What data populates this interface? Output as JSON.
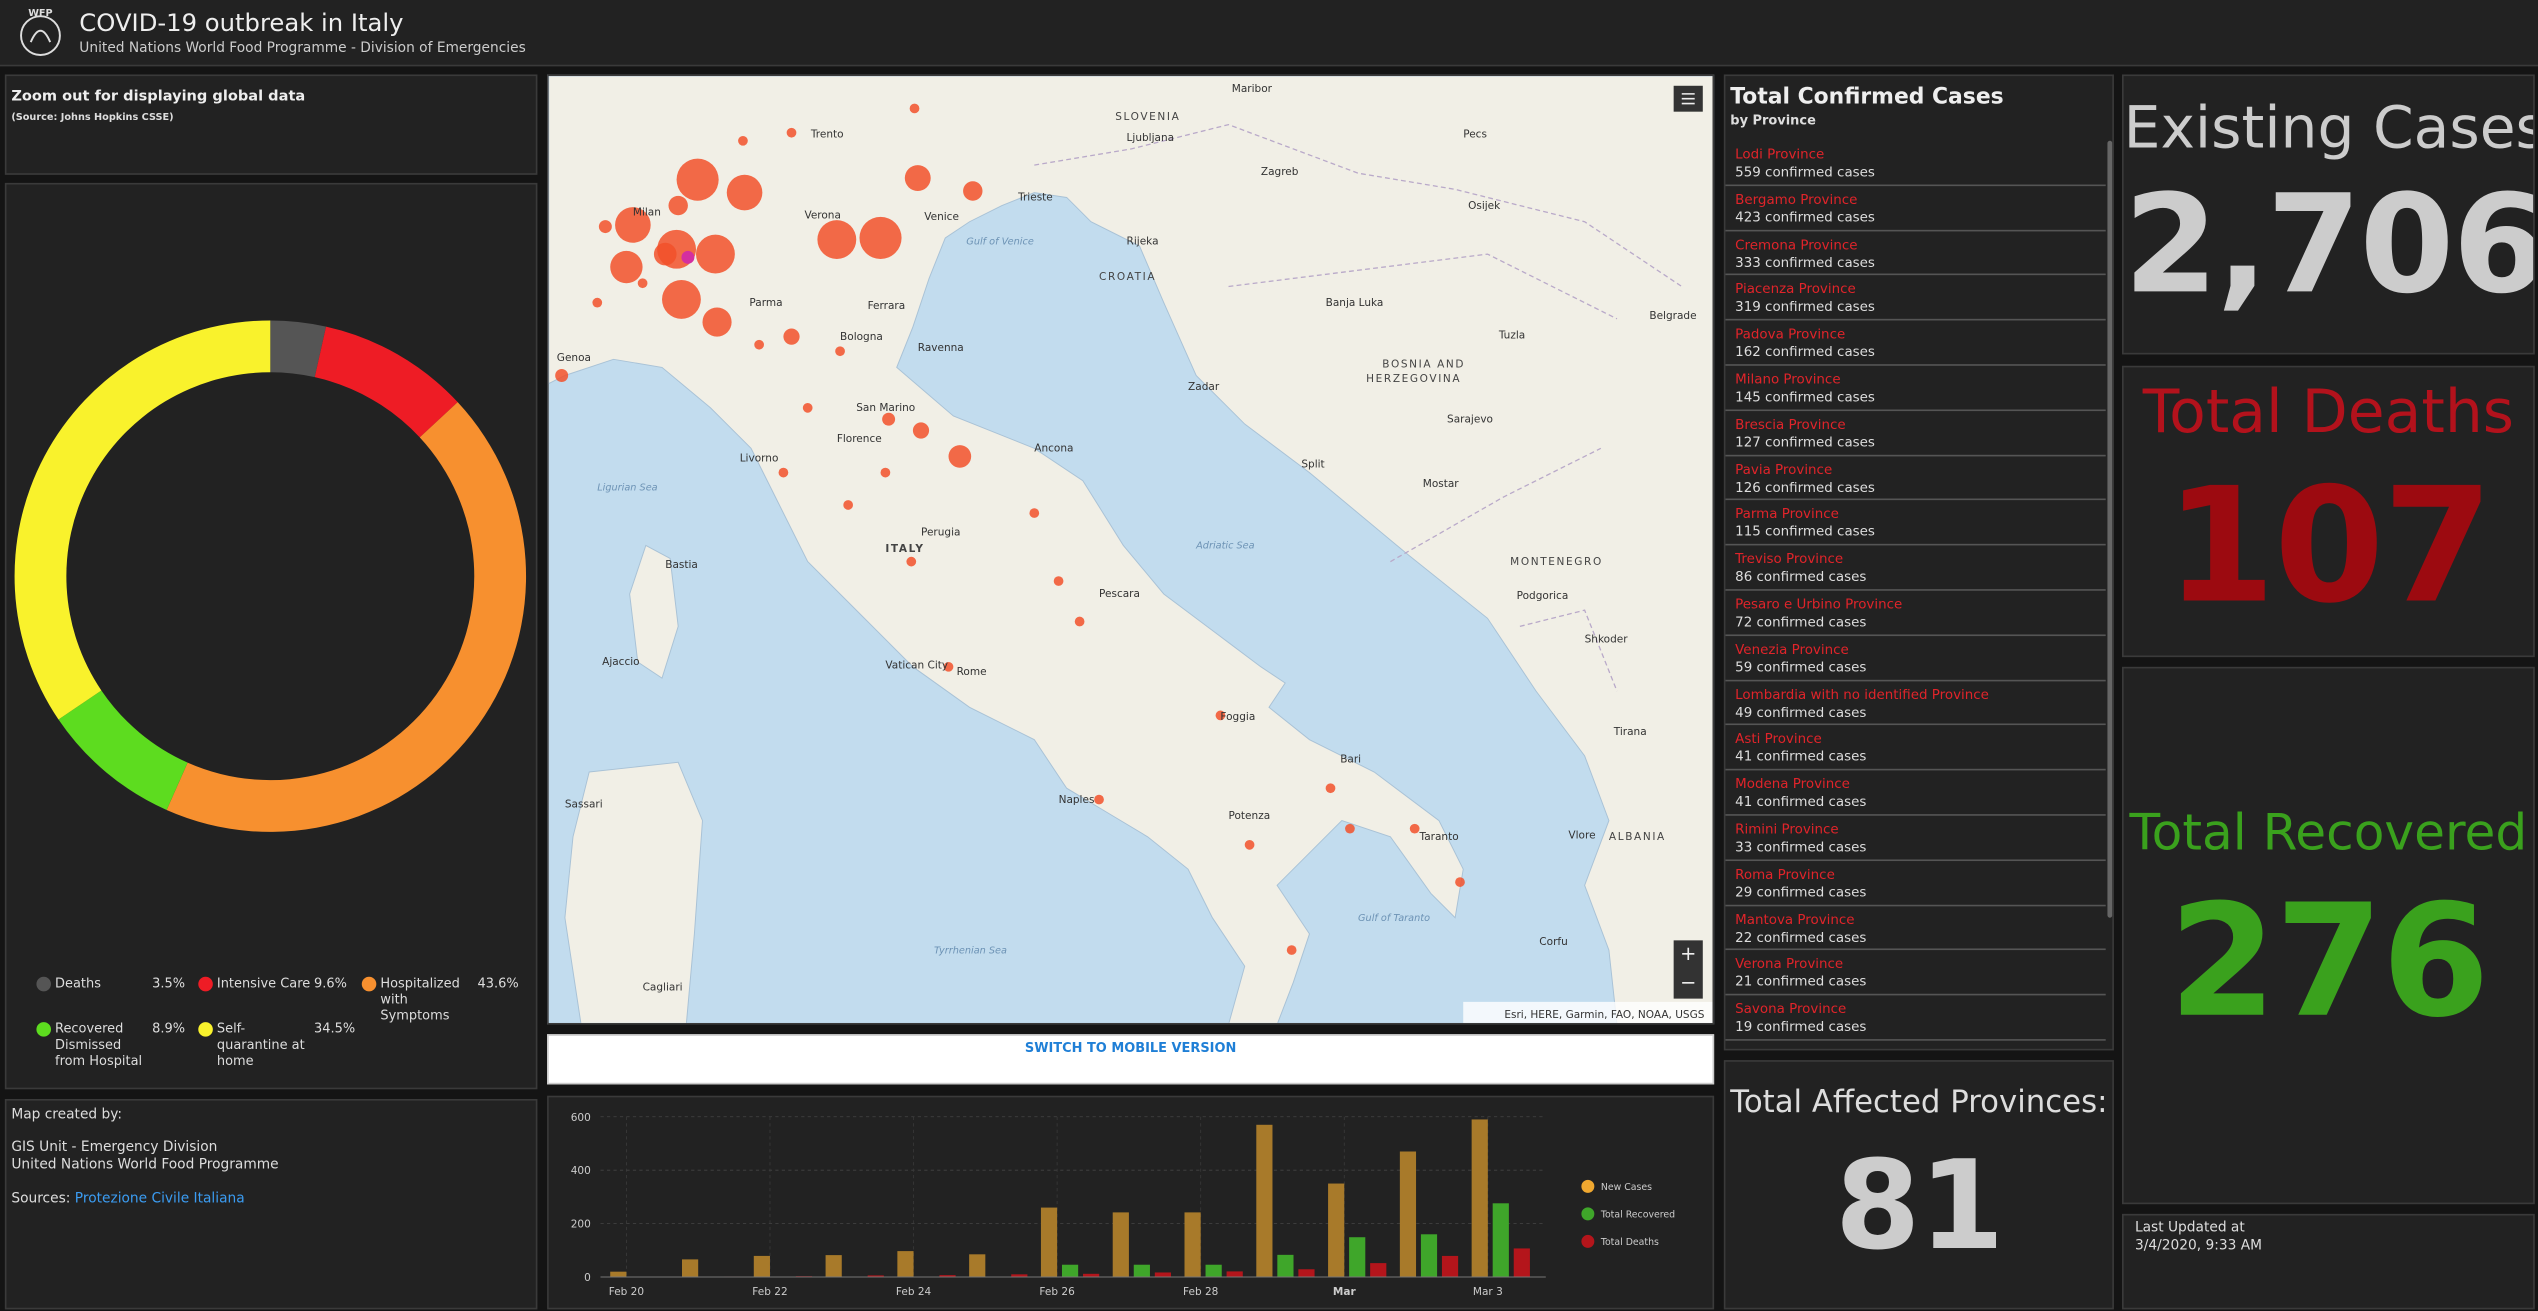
{
  "header": {
    "logo": "WFP",
    "title": "COVID-19 outbreak in Italy",
    "subtitle": "United Nations World Food Programme - Division of Emergencies"
  },
  "notice": {
    "title": "Zoom out for displaying global data",
    "source": "(Source: Johns Hopkins CSSE)"
  },
  "chart_data": [
    {
      "type": "donut",
      "categories": [
        "Deaths",
        "Intensive Care",
        "Hospitalized with Symptoms",
        "Recovered Dismissed from Hospital",
        "Self-quarantine at home"
      ],
      "values": [
        3.5,
        9.6,
        43.6,
        8.9,
        34.5
      ],
      "value_labels": [
        "3.5%",
        "9.6%",
        "43.6%",
        "8.9%",
        "34.5%"
      ],
      "colors": [
        "#555555",
        "#ee1c25",
        "#f7902f",
        "#5ddc1f",
        "#f9f22c"
      ]
    },
    {
      "type": "bar",
      "categories": [
        "Feb 20",
        null,
        "Feb 22",
        null,
        "Feb 24",
        null,
        "Feb 26",
        null,
        "Feb 28",
        null,
        "Mar",
        null,
        "Mar 3"
      ],
      "series": [
        {
          "name": "New Cases",
          "color": "#a87a2a",
          "legend_color": "#f0a830",
          "values": [
            20,
            66,
            79,
            82,
            97,
            85,
            260,
            242,
            242,
            570,
            350,
            470,
            590
          ]
        },
        {
          "name": "Total Recovered",
          "color": "#3fa62a",
          "values": [
            0,
            0,
            0,
            0,
            0,
            0,
            46,
            46,
            46,
            83,
            149,
            160,
            276
          ]
        },
        {
          "name": "Total Deaths",
          "color": "#b4151b",
          "values": [
            1,
            2,
            3,
            6,
            7,
            10,
            12,
            17,
            21,
            29,
            52,
            79,
            107
          ]
        }
      ],
      "ylim": [
        0,
        600
      ],
      "yticks": [
        0,
        200,
        400,
        600
      ],
      "grid": true
    }
  ],
  "credits": {
    "label": "Map created by:",
    "lines": [
      "GIS Unit - Emergency Division",
      "United Nations World Food Programme"
    ],
    "sources_label": "Sources:",
    "sources_link": "Protezione Civile Italiana"
  },
  "map": {
    "labels": [
      "SLOVENIA",
      "Ljubljana",
      "CROATIA",
      "Zagreb",
      "BOSNIA AND",
      "HERZEGOVINA",
      "MONTENEGRO",
      "ALBANIA",
      "ITALY",
      "Gulf of Venice",
      "Adriatic Sea",
      "Ligurian Sea",
      "Tyrrhenian Sea",
      "Gulf of Taranto",
      "Rome",
      "Vatican City",
      "San Marino",
      "Milan",
      "Venice",
      "Trieste",
      "Bologna",
      "Florence",
      "Ancona",
      "Pescara",
      "Naples",
      "Bari",
      "Taranto",
      "Sarajevo",
      "Split",
      "Zadar",
      "Rijeka",
      "Potenza",
      "Foggia",
      "Perugia",
      "Genoa",
      "Livorno",
      "Parma",
      "Verona",
      "Trento",
      "Cagliari",
      "Sassari",
      "Bastia",
      "Ajaccio",
      "Ferrara",
      "Ravenna",
      "Mostar",
      "Maribor",
      "Pecs",
      "Osijek",
      "Belgrade",
      "Banja Luka",
      "Tuzla",
      "Podgorica",
      "Shkoder",
      "Tirana",
      "Vlore",
      "Corfu"
    ],
    "attribution": "Esri, HERE, Garmin, FAO, NOAA, USGS",
    "zoom_in": "+",
    "zoom_out": "−"
  },
  "mobile_button": "SWITCH TO MOBILE VERSION",
  "province_list": {
    "title": "Total Confirmed Cases",
    "subtitle": "by Province",
    "items": [
      {
        "name": "Lodi Province",
        "count": "559 confirmed cases"
      },
      {
        "name": "Bergamo Province",
        "count": "423 confirmed cases"
      },
      {
        "name": "Cremona Province",
        "count": "333 confirmed cases"
      },
      {
        "name": "Piacenza Province",
        "count": "319 confirmed cases"
      },
      {
        "name": "Padova Province",
        "count": "162 confirmed cases"
      },
      {
        "name": "Milano Province",
        "count": "145 confirmed cases"
      },
      {
        "name": "Brescia Province",
        "count": "127 confirmed cases"
      },
      {
        "name": "Pavia Province",
        "count": "126 confirmed cases"
      },
      {
        "name": "Parma Province",
        "count": "115 confirmed cases"
      },
      {
        "name": "Treviso Province",
        "count": "86 confirmed cases"
      },
      {
        "name": "Pesaro e Urbino Province",
        "count": "72 confirmed cases"
      },
      {
        "name": "Venezia Province",
        "count": "59 confirmed cases"
      },
      {
        "name": "Lombardia with no identified Province",
        "count": "49 confirmed cases"
      },
      {
        "name": "Asti Province",
        "count": "41 confirmed cases"
      },
      {
        "name": "Modena Province",
        "count": "41 confirmed cases"
      },
      {
        "name": "Rimini Province",
        "count": "33 confirmed cases"
      },
      {
        "name": "Roma Province",
        "count": "29 confirmed cases"
      },
      {
        "name": "Mantova Province",
        "count": "22 confirmed cases"
      },
      {
        "name": "Verona Province",
        "count": "21 confirmed cases"
      },
      {
        "name": "Savona Province",
        "count": "19 confirmed cases"
      }
    ]
  },
  "indicators": {
    "existing": {
      "label": "Existing Cases",
      "value": "2,706"
    },
    "deaths": {
      "label": "Total Deaths",
      "value": "107"
    },
    "recovered": {
      "label": "Total Recovered",
      "value": "276"
    },
    "provinces": {
      "label": "Total Affected Provinces:",
      "value": "81"
    }
  },
  "last_updated": {
    "label": "Last Updated at",
    "value": "3/4/2020, 9:33 AM"
  }
}
